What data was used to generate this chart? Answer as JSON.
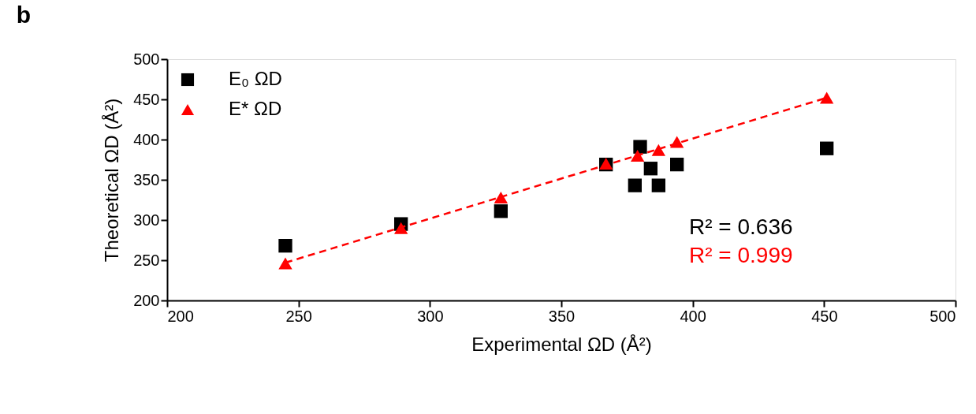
{
  "chart_data": {
    "type": "scatter",
    "title": "b",
    "xlabel": "Experimental ΩD (Å²)",
    "ylabel": "Theoretical ΩD (Å²)",
    "xlim": [
      200,
      500
    ],
    "xticks": [
      200,
      250,
      300,
      350,
      400,
      450,
      500
    ],
    "ylim": [
      200,
      500
    ],
    "yticks": [
      200,
      250,
      300,
      350,
      400,
      450,
      500
    ],
    "grid": false,
    "legend": "top left",
    "series": [
      {
        "name": "E₀ ΩD",
        "color": "#000000",
        "marker": "square",
        "x": [
          245,
          289,
          327,
          367,
          380,
          384,
          378,
          387,
          394,
          451
        ],
        "values": [
          268,
          295,
          311,
          369,
          391,
          364,
          343,
          343,
          369,
          389
        ]
      },
      {
        "name": "E* ΩD",
        "color": "#ff0000",
        "marker": "triangle",
        "x": [
          245,
          289,
          327,
          367,
          379,
          387,
          394,
          451
        ],
        "values": [
          246,
          290,
          328,
          370,
          380,
          387,
          397,
          452
        ]
      },
      {
        "type": "line",
        "color": "#ff0000",
        "line_style": "dashed",
        "marker": "none",
        "x": [
          245,
          451
        ],
        "values": [
          247,
          452
        ]
      }
    ],
    "annotations": [
      "R² = 0.636",
      "R² = 0.999"
    ]
  }
}
